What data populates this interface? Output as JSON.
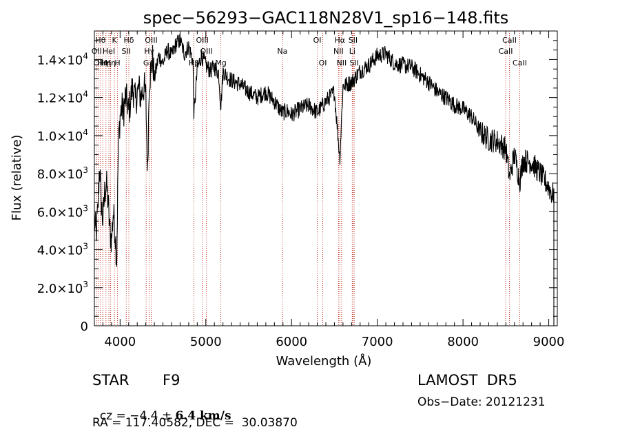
{
  "chart_data": {
    "type": "line",
    "title": "spec−56293−GAC118N28V1_sp16−148.fits",
    "xlabel": "Wavelength (Å)",
    "ylabel": "Flux (relative)",
    "xlim": [
      3700,
      9100
    ],
    "ylim": [
      0,
      15500
    ],
    "x_ticks": [
      {
        "value": 4000,
        "label": "4000"
      },
      {
        "value": 5000,
        "label": "5000"
      },
      {
        "value": 6000,
        "label": "6000"
      },
      {
        "value": 7000,
        "label": "7000"
      },
      {
        "value": 8000,
        "label": "8000"
      },
      {
        "value": 9000,
        "label": "9000"
      }
    ],
    "y_ticks": [
      {
        "value": 0,
        "mant": "0",
        "exp": ""
      },
      {
        "value": 2000,
        "mant": "2.0×10",
        "exp": "3"
      },
      {
        "value": 4000,
        "mant": "4.0×10",
        "exp": "3"
      },
      {
        "value": 6000,
        "mant": "6.0×10",
        "exp": "3"
      },
      {
        "value": 8000,
        "mant": "8.0×10",
        "exp": "3"
      },
      {
        "value": 10000,
        "mant": "1.0×10",
        "exp": "4"
      },
      {
        "value": 12000,
        "mant": "1.2×10",
        "exp": "4"
      },
      {
        "value": 14000,
        "mant": "1.4×10",
        "exp": "4"
      }
    ],
    "grid": false,
    "series": [
      {
        "color": "#000000",
        "x": [
          3700,
          3720,
          3740,
          3760,
          3780,
          3800,
          3820,
          3840,
          3860,
          3880,
          3900,
          3920,
          3940,
          3960,
          3980,
          4000,
          4020,
          4040,
          4060,
          4080,
          4100,
          4120,
          4140,
          4160,
          4180,
          4200,
          4220,
          4240,
          4260,
          4280,
          4300,
          4320,
          4340,
          4360,
          4380,
          4400,
          4450,
          4500,
          4550,
          4600,
          4650,
          4700,
          4750,
          4800,
          4850,
          4861,
          4900,
          4950,
          5000,
          5050,
          5100,
          5150,
          5175,
          5200,
          5250,
          5300,
          5400,
          5500,
          5600,
          5700,
          5800,
          5890,
          5950,
          6000,
          6100,
          6200,
          6300,
          6400,
          6500,
          6563,
          6600,
          6700,
          6800,
          6900,
          7000,
          7100,
          7200,
          7300,
          7400,
          7500,
          7600,
          7700,
          7800,
          7900,
          8000,
          8100,
          8200,
          8300,
          8400,
          8500,
          8542,
          8600,
          8662,
          8700,
          8800,
          8900,
          9000,
          9040,
          9060
        ],
        "y": [
          5500,
          4800,
          6000,
          8500,
          6500,
          5500,
          7000,
          7500,
          6500,
          5000,
          4500,
          6000,
          5000,
          3500,
          9500,
          11000,
          11500,
          11200,
          12000,
          11800,
          11200,
          11800,
          12500,
          12300,
          11800,
          12200,
          12500,
          12000,
          12300,
          12600,
          12000,
          8000,
          12800,
          13500,
          14000,
          13000,
          14200,
          13800,
          14500,
          14200,
          14800,
          15000,
          14300,
          14700,
          13900,
          11000,
          13500,
          14200,
          13700,
          13400,
          13600,
          13300,
          11500,
          13400,
          13100,
          12900,
          12700,
          12300,
          12000,
          12300,
          11800,
          11200,
          11300,
          11100,
          11400,
          11600,
          11200,
          11800,
          12300,
          8800,
          12600,
          12800,
          13400,
          13700,
          14200,
          14300,
          13800,
          13700,
          13600,
          13200,
          12800,
          12300,
          12000,
          11600,
          11400,
          11000,
          10200,
          9800,
          9700,
          9300,
          7800,
          9000,
          7600,
          8700,
          8600,
          8000,
          7300,
          6900,
          7000
        ]
      }
    ],
    "lines": [
      {
        "x": 3727,
        "label": "OII",
        "row": 2
      },
      {
        "x": 3750,
        "label": "OII",
        "row": 3
      },
      {
        "x": 3771,
        "label": "Hθ",
        "row": 1
      },
      {
        "x": 3798,
        "label": "Hη",
        "row": 3
      },
      {
        "x": 3835,
        "label": "Hη",
        "row": 3
      },
      {
        "x": 3869,
        "label": "HeI",
        "row": 2
      },
      {
        "x": 3889,
        "label": "Hη",
        "row": 3
      },
      {
        "x": 3934,
        "label": "K",
        "row": 1
      },
      {
        "x": 3969,
        "label": "H",
        "row": 3
      },
      {
        "x": 4072,
        "label": "SII",
        "row": 2
      },
      {
        "x": 4102,
        "label": "Hδ",
        "row": 1
      },
      {
        "x": 4304,
        "label": "G",
        "row": 3
      },
      {
        "x": 4340,
        "label": "Hγ",
        "row": 2
      },
      {
        "x": 4363,
        "label": "OIII",
        "row": 1
      },
      {
        "x": 4861,
        "label": "Hβ",
        "row": 3
      },
      {
        "x": 4959,
        "label": "OIII",
        "row": 1
      },
      {
        "x": 5007,
        "label": "OIII",
        "row": 2
      },
      {
        "x": 5175,
        "label": "Mg",
        "row": 3
      },
      {
        "x": 5893,
        "label": "Na",
        "row": 2
      },
      {
        "x": 6300,
        "label": "OI",
        "row": 1
      },
      {
        "x": 6364,
        "label": "OI",
        "row": 3
      },
      {
        "x": 6548,
        "label": "NII",
        "row": 2
      },
      {
        "x": 6563,
        "label": "Hα",
        "row": 1
      },
      {
        "x": 6584,
        "label": "NII",
        "row": 3
      },
      {
        "x": 6708,
        "label": "Li",
        "row": 2
      },
      {
        "x": 6717,
        "label": "SII",
        "row": 1
      },
      {
        "x": 6731,
        "label": "SII",
        "row": 3
      },
      {
        "x": 8498,
        "label": "CaII",
        "row": 2
      },
      {
        "x": 8542,
        "label": "CaII",
        "row": 1
      },
      {
        "x": 8662,
        "label": "CaII",
        "row": 3
      }
    ]
  },
  "info": {
    "class_label": "STAR",
    "subclass": "F9",
    "survey": "LAMOST  DR5",
    "cz_prefix": "cz = −4.4 ± ",
    "cz_bold": "6.4 km/s",
    "obs_date": "Obs−Date: 20121231",
    "radec": "RA = 117.40582, DEC =  30.03870"
  }
}
